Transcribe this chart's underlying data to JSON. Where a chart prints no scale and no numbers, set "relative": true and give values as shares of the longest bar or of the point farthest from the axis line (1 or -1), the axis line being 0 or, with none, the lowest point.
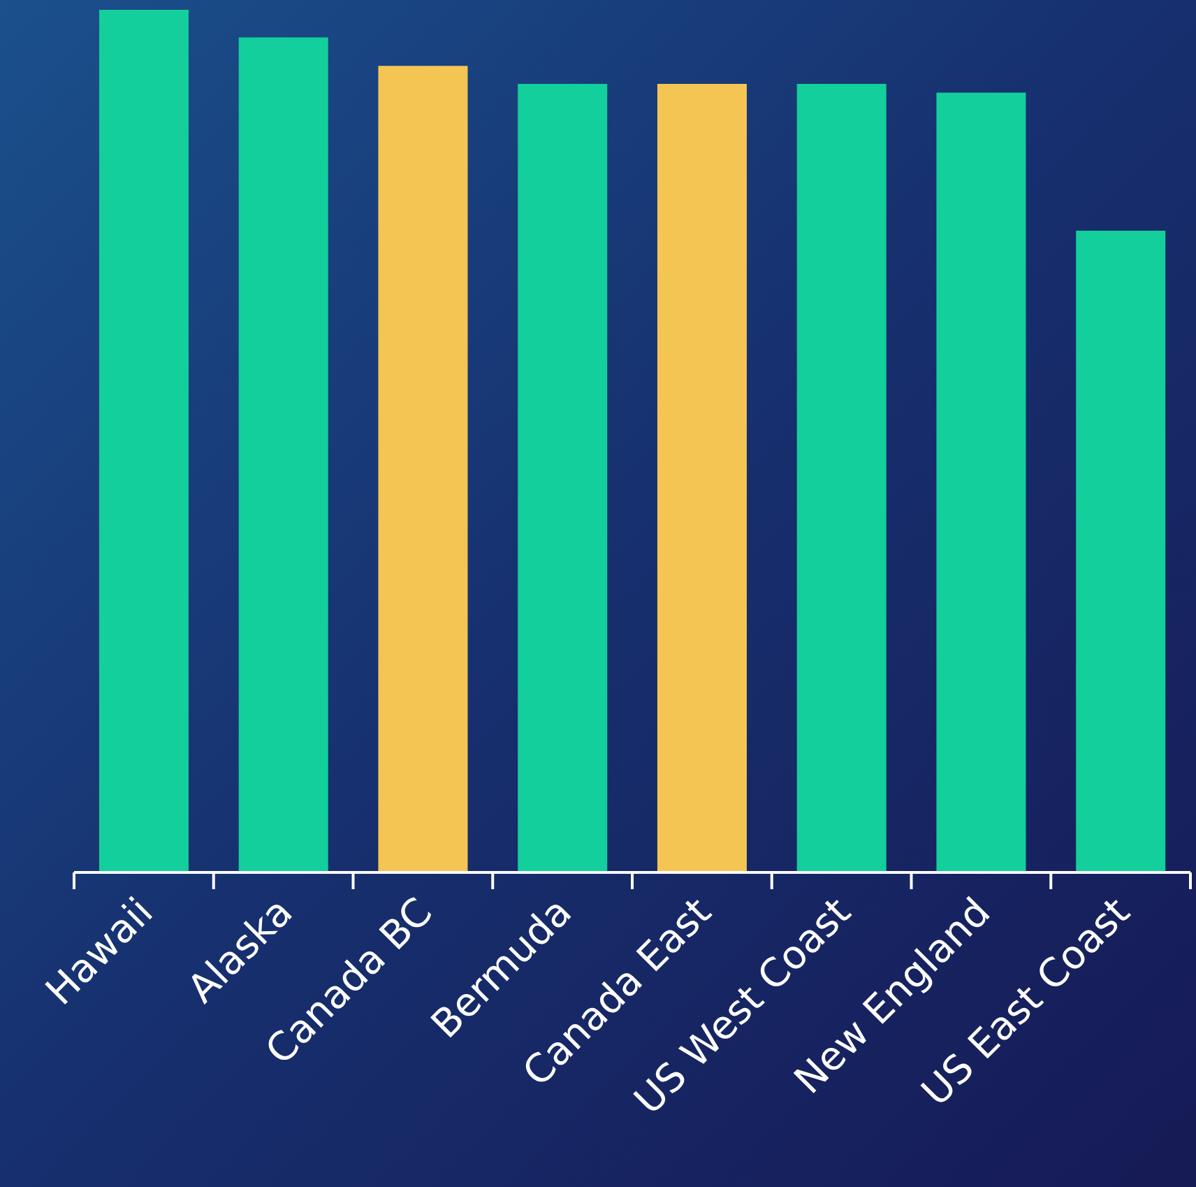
{
  "chart_data": {
    "type": "bar",
    "relative": true,
    "categories": [
      "Hawaii",
      "Alaska",
      "Canada BC",
      "Bermuda",
      "Canada East",
      "US West Coast",
      "New England",
      "US East Coast"
    ],
    "values": [
      1,
      0.968,
      0.935,
      0.914,
      0.914,
      0.914,
      0.904,
      0.744
    ],
    "colors": [
      "#12cf9c",
      "#12cf9c",
      "#f5c553",
      "#12cf9c",
      "#f5c553",
      "#12cf9c",
      "#12cf9c",
      "#12cf9c"
    ],
    "grid": false,
    "legend": false
  }
}
